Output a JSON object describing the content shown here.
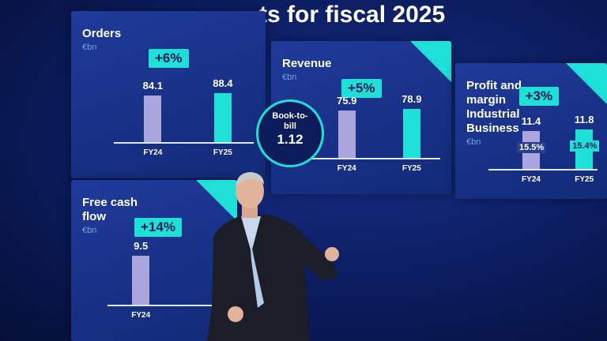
{
  "slide": {
    "title": "ts for fiscal 2025",
    "panels": [
      {
        "title": "Orders",
        "unit": "€bn",
        "growth": "+6%",
        "categories": [
          "FY24",
          "FY25"
        ],
        "values": [
          84.1,
          88.4
        ]
      },
      {
        "title": "Revenue",
        "unit": "€bn",
        "growth": "+5%",
        "categories": [
          "FY24",
          "FY25"
        ],
        "values": [
          75.9,
          78.9
        ]
      },
      {
        "title": "Profit and margin Industrial Business",
        "unit": "€bn",
        "growth": "+3%",
        "categories": [
          "FY24",
          "FY25"
        ],
        "values": [
          11.4,
          11.8
        ],
        "margin_labels": [
          "15.5%",
          "15.4%"
        ]
      },
      {
        "title": "Free cash flow",
        "unit": "€bn",
        "growth": "+14%",
        "categories": [
          "FY24"
        ],
        "values": [
          9.5
        ]
      }
    ],
    "book_to_bill": {
      "label": "Book-to-bill",
      "value": 1.12
    }
  }
}
